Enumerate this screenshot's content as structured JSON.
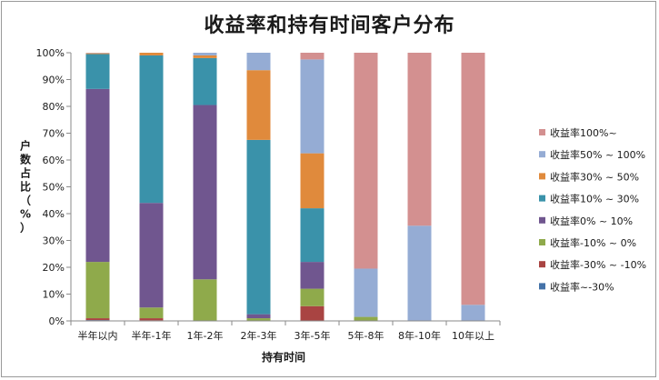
{
  "chart_data": {
    "type": "bar",
    "stacked": "percent",
    "title": "收益率和持有时间客户分布",
    "xlabel": "持有时间",
    "ylabel": "户数占比（%）",
    "ylim": [
      0,
      100
    ],
    "y_ticks": [
      "0%",
      "10%",
      "20%",
      "30%",
      "40%",
      "50%",
      "60%",
      "70%",
      "80%",
      "90%",
      "100%"
    ],
    "grid": false,
    "legend_position": "right",
    "categories": [
      "半年以内",
      "半年-1年",
      "1年-2年",
      "2年-3年",
      "3年-5年",
      "5年-8年",
      "8年-10年",
      "10年以上"
    ],
    "series": [
      {
        "name": "收益率~-30%",
        "color": "#4472a8",
        "values": [
          0.3,
          0.2,
          0,
          0,
          0,
          0,
          0,
          0
        ]
      },
      {
        "name": "收益率-30% ~ -10%",
        "color": "#a94442",
        "values": [
          0.7,
          0.8,
          0,
          0,
          5.5,
          0,
          0,
          0
        ]
      },
      {
        "name": "收益率-10% ~ 0%",
        "color": "#8faa4b",
        "values": [
          21,
          4,
          15.5,
          1,
          6.5,
          1.5,
          0,
          0
        ]
      },
      {
        "name": "收益率0% ~ 10%",
        "color": "#70568f",
        "values": [
          64.5,
          39,
          65,
          1.5,
          10,
          0,
          0,
          0
        ]
      },
      {
        "name": "收益率10% ~ 30%",
        "color": "#3a92aa",
        "values": [
          13,
          55,
          17.5,
          65,
          20,
          0,
          0,
          0
        ]
      },
      {
        "name": "收益率30% ~ 50%",
        "color": "#e08a3c",
        "values": [
          0.3,
          1,
          1,
          26,
          20.5,
          0,
          0,
          0
        ]
      },
      {
        "name": "收益率50% ~ 100%",
        "color": "#95acd4",
        "values": [
          0.1,
          0,
          1,
          6.5,
          35,
          18,
          35.5,
          6
        ]
      },
      {
        "name": "收益率100%~",
        "color": "#d39090",
        "values": [
          0.1,
          0,
          0,
          0,
          2.5,
          80.5,
          64.5,
          94
        ]
      }
    ]
  }
}
